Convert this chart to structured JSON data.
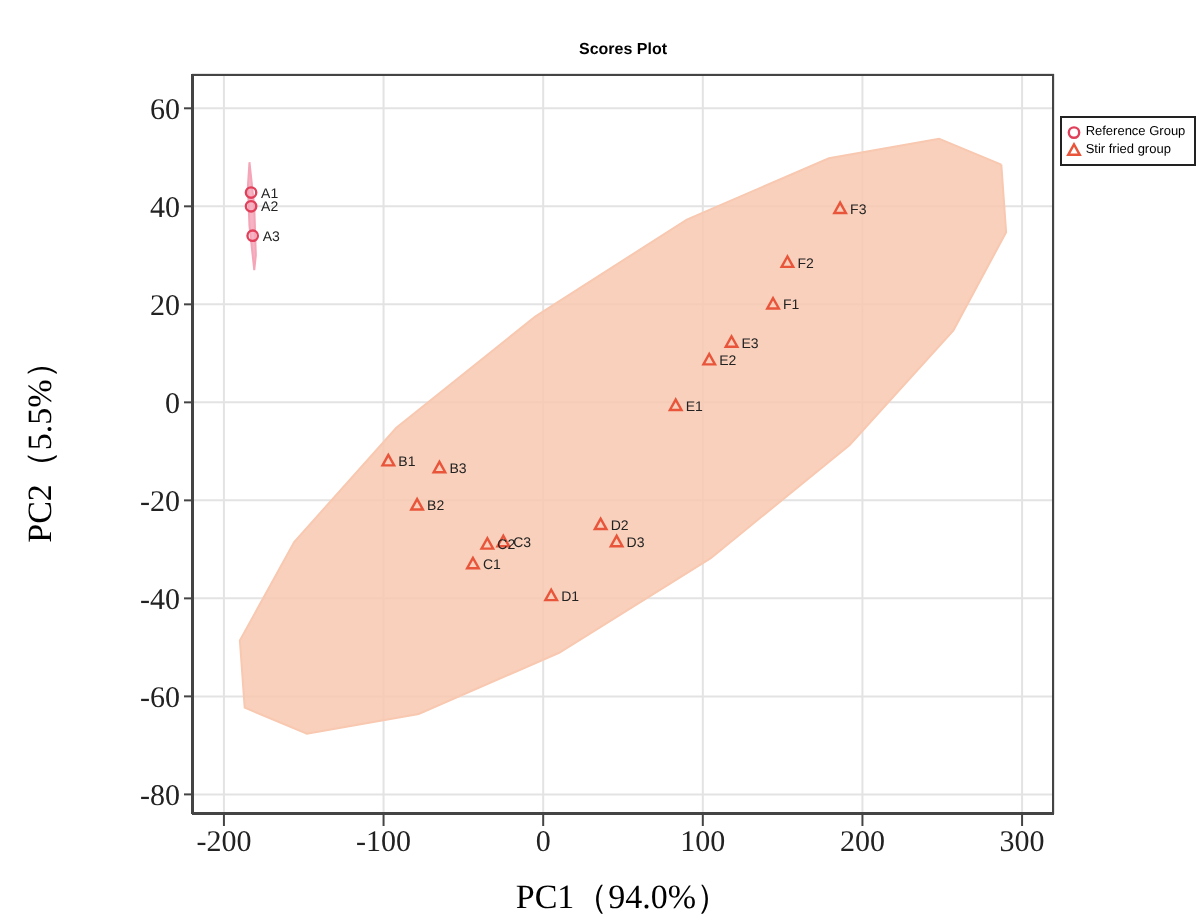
{
  "chart_data": {
    "type": "scatter",
    "title": "Scores Plot",
    "xlabel": "PC1（94.0%）",
    "ylabel": "PC2（5.5%）",
    "xlim": [
      -220,
      320
    ],
    "xticks": [
      -200,
      -100,
      0,
      100,
      200,
      300
    ],
    "ylim": [
      -84,
      67
    ],
    "yticks": [
      -80,
      -60,
      -40,
      -20,
      0,
      20,
      40,
      60
    ],
    "grid": true,
    "legend": "top right",
    "series": [
      {
        "type": "area",
        "color": "#f8c8b0",
        "x": [
          287,
          290,
          257,
          192,
          105,
          10,
          -78,
          -148,
          -187,
          -190,
          -156,
          -92,
          -5,
          90,
          179,
          248,
          287
        ],
        "values": [
          48.5,
          34.7,
          14.7,
          -8.7,
          -31.8,
          -51.1,
          -63.6,
          -67.6,
          -62.3,
          -48.6,
          -28.5,
          -5.2,
          17.5,
          37.3,
          49.8,
          53.8,
          48.5
        ]
      },
      {
        "type": "area",
        "color": "#f4a6b8",
        "x": [
          -184,
          -181,
          -180,
          -181,
          -184,
          -185,
          -184
        ],
        "values": [
          49,
          40,
          30,
          27,
          36,
          44,
          49
        ]
      },
      {
        "name": "Reference Group",
        "color": "#e0405a",
        "marker": "circle",
        "x": [
          -183,
          -183,
          -182
        ],
        "values": [
          42.8,
          40,
          34
        ]
      },
      {
        "name": "Stir fried group",
        "color": "#e8553a",
        "marker": "triangle",
        "x": [
          -97,
          -79,
          -65,
          -44,
          -35,
          -25,
          5,
          36,
          46,
          83,
          104,
          118,
          144,
          153,
          186
        ],
        "values": [
          -12,
          -21,
          -13.4,
          -33,
          -29,
          -28.5,
          -39.5,
          -25,
          -28.5,
          -0.7,
          8.6,
          12.2,
          20,
          28.5,
          39.5
        ]
      }
    ],
    "annotations": [
      {
        "text": "A1",
        "x": -183,
        "y": 42.8
      },
      {
        "text": "A2",
        "x": -183,
        "y": 40
      },
      {
        "text": "A3",
        "x": -182,
        "y": 34
      },
      {
        "text": "B1",
        "x": -97,
        "y": -12
      },
      {
        "text": "B2",
        "x": -79,
        "y": -21
      },
      {
        "text": "B3",
        "x": -65,
        "y": -13.4
      },
      {
        "text": "C1",
        "x": -44,
        "y": -33
      },
      {
        "text": "C2",
        "x": -35,
        "y": -29
      },
      {
        "text": "C3",
        "x": -25,
        "y": -28.5
      },
      {
        "text": "D1",
        "x": 5,
        "y": -39.5
      },
      {
        "text": "D2",
        "x": 36,
        "y": -25
      },
      {
        "text": "D3",
        "x": 46,
        "y": -28.5
      },
      {
        "text": "E1",
        "x": 83,
        "y": -0.7
      },
      {
        "text": "E2",
        "x": 104,
        "y": 8.6
      },
      {
        "text": "E3",
        "x": 118,
        "y": 12.2
      },
      {
        "text": "F1",
        "x": 144,
        "y": 20
      },
      {
        "text": "F2",
        "x": 153,
        "y": 28.5
      },
      {
        "text": "F3",
        "x": 186,
        "y": 39.5
      }
    ]
  }
}
